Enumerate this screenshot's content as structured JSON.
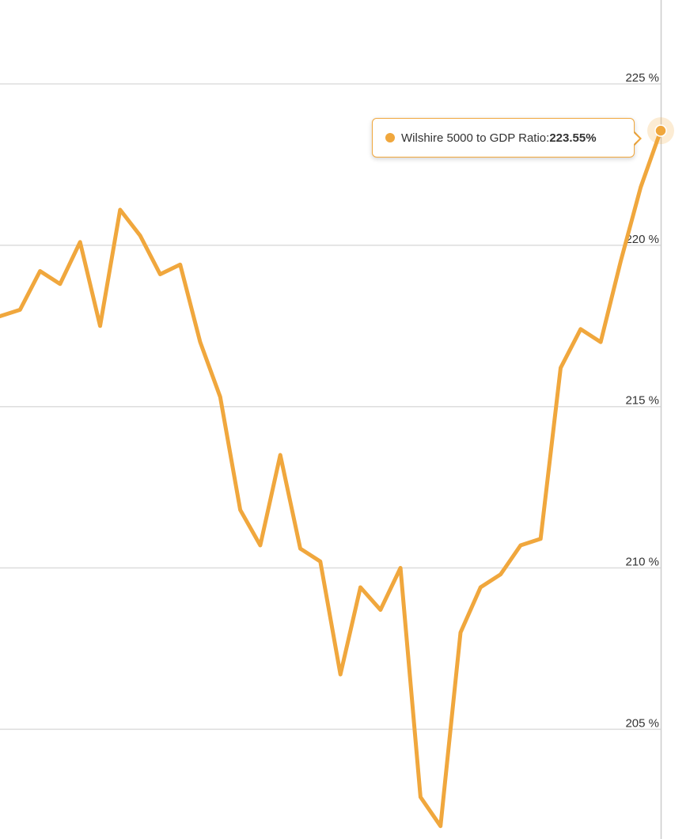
{
  "chart_data": {
    "type": "line",
    "title": "",
    "xlabel": "",
    "ylabel": "",
    "ylim": [
      201.6,
      227.6
    ],
    "yticks": [
      205,
      210,
      215,
      220,
      225
    ],
    "ytick_labels": [
      "205 %",
      "210 %",
      "215 %",
      "220 %",
      "225 %"
    ],
    "grid": true,
    "y_axis_side": "right",
    "series": [
      {
        "name": "Wilshire 5000 to GDP Ratio",
        "color": "#f0a73d",
        "values": [
          217.8,
          218.0,
          219.2,
          218.8,
          220.1,
          217.5,
          221.1,
          220.3,
          219.1,
          219.4,
          217.0,
          215.3,
          211.8,
          210.7,
          213.5,
          210.6,
          210.2,
          206.7,
          209.4,
          208.7,
          210.0,
          202.9,
          202.0,
          208.0,
          209.4,
          209.8,
          210.7,
          210.9,
          216.2,
          217.4,
          217.0,
          219.5,
          221.8,
          223.55
        ]
      }
    ]
  },
  "tooltip": {
    "label": "Wilshire 5000 to GDP Ratio: ",
    "value": "223.55%"
  }
}
